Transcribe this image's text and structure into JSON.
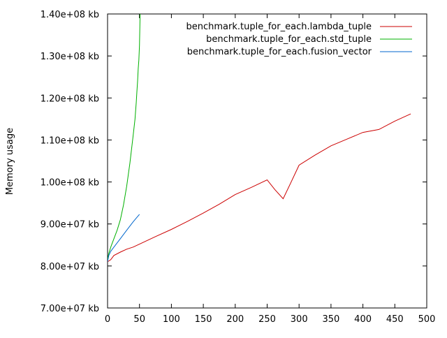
{
  "chart_data": {
    "type": "line",
    "title": "",
    "xlabel": "",
    "ylabel": "Memory usage",
    "xlim": [
      0,
      500
    ],
    "ylim": [
      70000000,
      140000000
    ],
    "grid": false,
    "legend_position": "top-right",
    "x_ticks": [
      0,
      50,
      100,
      150,
      200,
      250,
      300,
      350,
      400,
      450,
      500
    ],
    "x_tick_labels": [
      "0",
      "50",
      "100",
      "150",
      "200",
      "250",
      "300",
      "350",
      "400",
      "450",
      "500"
    ],
    "y_ticks": [
      70000000,
      80000000,
      90000000,
      100000000,
      110000000,
      120000000,
      130000000,
      140000000
    ],
    "y_tick_labels": [
      "7.00e+07 kb",
      "8.00e+07 kb",
      "9.00e+07 kb",
      "1.00e+08 kb",
      "1.10e+08 kb",
      "1.20e+08 kb",
      "1.30e+08 kb",
      "1.40e+08 kb"
    ],
    "series": [
      {
        "name": "benchmark.tuple_for_each.lambda_tuple",
        "color": "#cc0000",
        "x": [
          0,
          5,
          10,
          20,
          30,
          40,
          50,
          75,
          100,
          125,
          150,
          175,
          200,
          225,
          250,
          262,
          275,
          287,
          300,
          325,
          350,
          375,
          400,
          425,
          450,
          475
        ],
        "y": [
          81000000,
          81500000,
          82500000,
          83300000,
          84000000,
          84500000,
          85200000,
          87000000,
          88700000,
          90600000,
          92600000,
          94700000,
          97000000,
          98700000,
          100500000,
          98200000,
          96000000,
          99800000,
          104000000,
          106400000,
          108600000,
          110200000,
          111800000,
          112500000,
          114500000,
          116200000
        ]
      },
      {
        "name": "benchmark.tuple_for_each.std_tuple",
        "color": "#00b000",
        "x": [
          0,
          2,
          5,
          8,
          10,
          15,
          20,
          25,
          30,
          35,
          40,
          43,
          45,
          46,
          47,
          48,
          49,
          50,
          51
        ],
        "y": [
          81500000,
          83000000,
          84500000,
          85700000,
          86500000,
          88500000,
          91000000,
          94500000,
          99000000,
          104500000,
          111000000,
          115000000,
          119000000,
          121500000,
          124000000,
          127000000,
          129000000,
          132500000,
          140000000
        ]
      },
      {
        "name": "benchmark.tuple_for_each.fusion_vector",
        "color": "#0066cc",
        "x": [
          0,
          2,
          5,
          10,
          15,
          20,
          25,
          30,
          35,
          40,
          45,
          50
        ],
        "y": [
          81000000,
          82500000,
          83500000,
          84500000,
          85500000,
          86500000,
          87500000,
          88500000,
          89500000,
          90500000,
          91400000,
          92300000
        ]
      }
    ]
  }
}
